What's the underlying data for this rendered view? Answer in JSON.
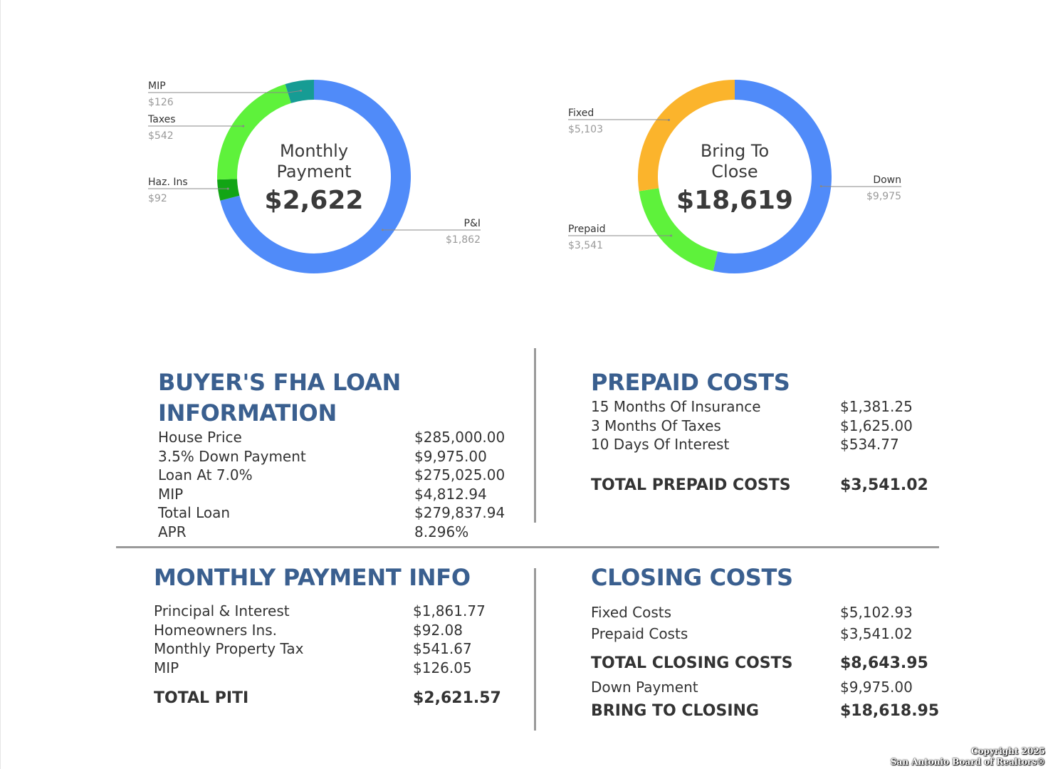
{
  "chart_data": [
    {
      "type": "pie",
      "center_label": "Monthly Payment",
      "center_value": "$2,622",
      "slices": [
        {
          "label": "P&I",
          "display": "$1,862",
          "value": 1862,
          "color": "#508bf9"
        },
        {
          "label": "Haz. Ins",
          "display": "$92",
          "value": 92,
          "color": "#12a515"
        },
        {
          "label": "Taxes",
          "display": "$542",
          "value": 542,
          "color": "#5ef23b"
        },
        {
          "label": "MIP",
          "display": "$126",
          "value": 126,
          "color": "#169c94"
        }
      ]
    },
    {
      "type": "pie",
      "center_label": "Bring To Close",
      "center_value": "$18,619",
      "slices": [
        {
          "label": "Down",
          "display": "$9,975",
          "value": 9975,
          "color": "#508bf9"
        },
        {
          "label": "Prepaid",
          "display": "$3,541",
          "value": 3541,
          "color": "#5ef23b"
        },
        {
          "label": "Fixed",
          "display": "$5,103",
          "value": 5103,
          "color": "#fbb42c"
        }
      ]
    }
  ],
  "loan_info": {
    "title": "BUYER'S FHA LOAN INFORMATION",
    "rows": [
      {
        "label": "House Price",
        "value": "$285,000.00"
      },
      {
        "label": "3.5% Down Payment",
        "value": "$9,975.00"
      },
      {
        "label": "Loan At 7.0%",
        "value": "$275,025.00"
      },
      {
        "label": "MIP",
        "value": "$4,812.94"
      },
      {
        "label": "Total Loan",
        "value": "$279,837.94"
      },
      {
        "label": "APR",
        "value": "8.296%"
      }
    ]
  },
  "prepaid": {
    "title": "PREPAID COSTS",
    "rows": [
      {
        "label": "15 Months Of Insurance",
        "value": "$1,381.25"
      },
      {
        "label": "3 Months Of Taxes",
        "value": "$1,625.00"
      },
      {
        "label": "10 Days Of Interest",
        "value": "$534.77"
      }
    ],
    "total_label": "TOTAL PREPAID COSTS",
    "total_value": "$3,541.02"
  },
  "monthly": {
    "title": "MONTHLY PAYMENT INFO",
    "rows": [
      {
        "label": "Principal & Interest",
        "value": "$1,861.77"
      },
      {
        "label": "Homeowners Ins.",
        "value": "$92.08"
      },
      {
        "label": "Monthly Property Tax",
        "value": "$541.67"
      },
      {
        "label": "MIP",
        "value": "$126.05"
      }
    ],
    "total_label": "TOTAL PITI",
    "total_value": "$2,621.57"
  },
  "closing": {
    "title": "CLOSING COSTS",
    "rows": [
      {
        "label": "Fixed Costs",
        "value": "$5,102.93"
      },
      {
        "label": "Prepaid Costs",
        "value": "$3,541.02"
      }
    ],
    "total_label": "TOTAL CLOSING COSTS",
    "total_value": "$8,643.95",
    "down_label": "Down Payment",
    "down_value": "$9,975.00",
    "bring_label": "BRING TO CLOSING",
    "bring_value": "$18,618.95"
  },
  "copyright": {
    "line1": "Copyright 2025",
    "line2": "San Antonio Board of Realtors®"
  }
}
